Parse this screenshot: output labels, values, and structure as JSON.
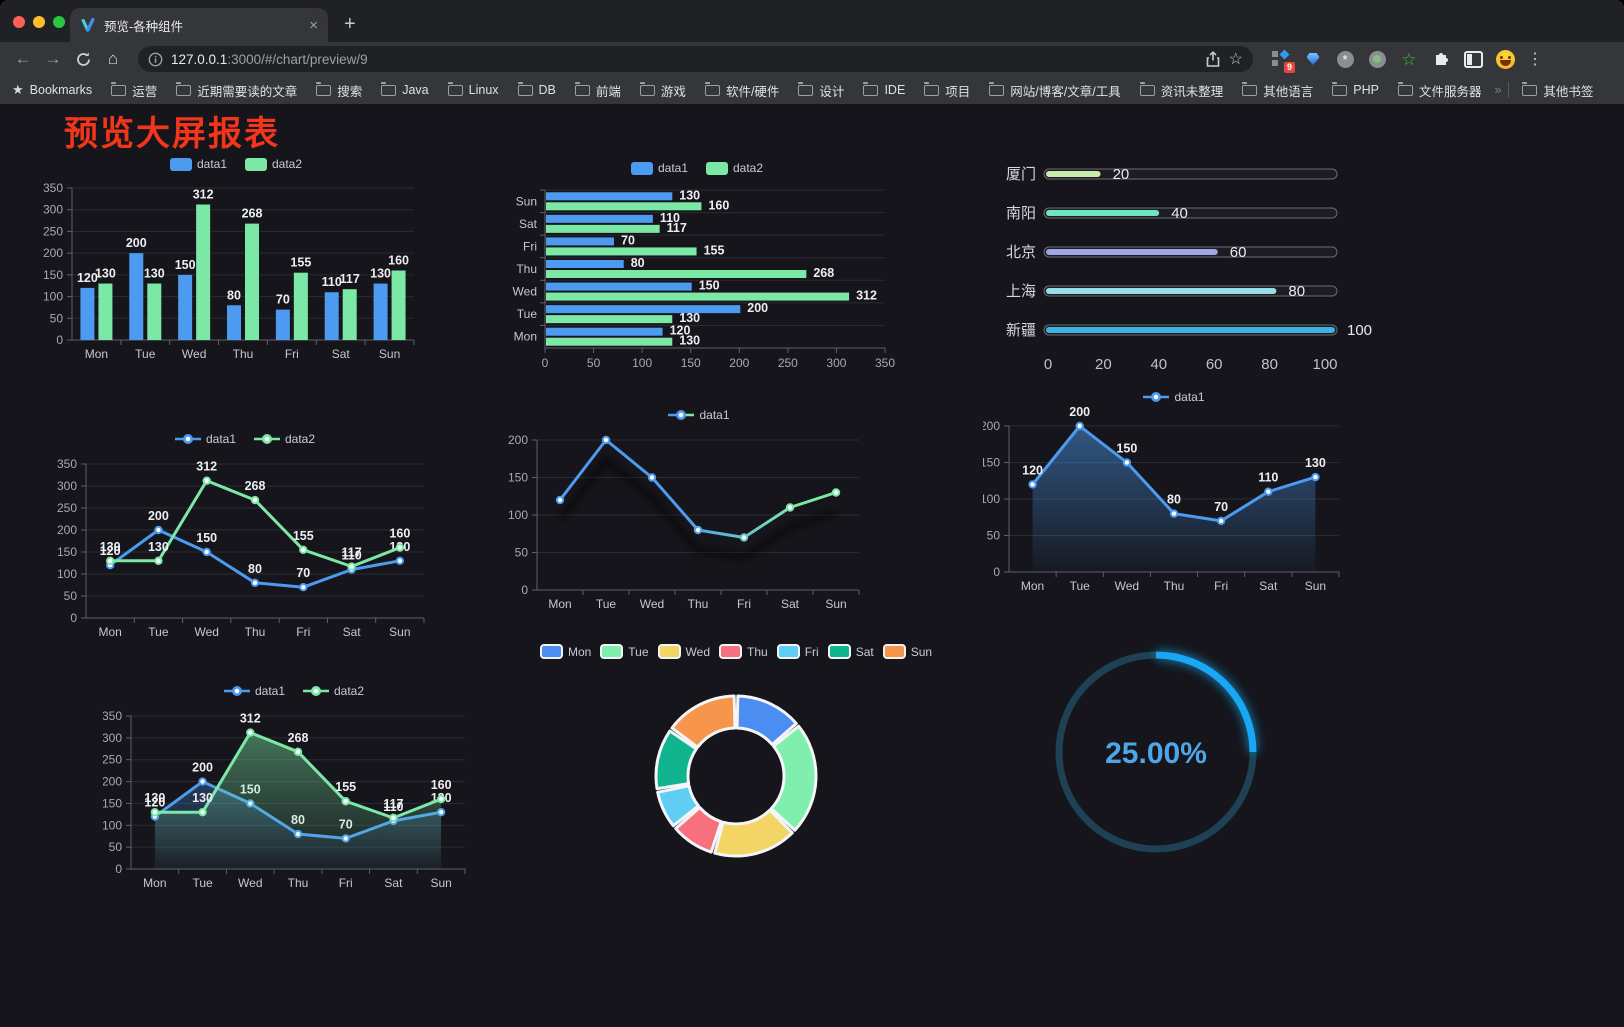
{
  "browser": {
    "traffic_lights": [
      {
        "name": "close",
        "color": "#FF5F57"
      },
      {
        "name": "minimize",
        "color": "#FEBC2E"
      },
      {
        "name": "zoom",
        "color": "#29C73F"
      }
    ],
    "tab": {
      "title": "预览-各种组件",
      "close_glyph": "×",
      "new_tab_glyph": "+"
    },
    "nav": {
      "back_glyph": "←",
      "forward_glyph": "→",
      "home_glyph": "⌂",
      "url_host": "127.0.0.1",
      "url_rest": ":3000/#/chart/preview/9",
      "star_glyph": "☆",
      "menu_glyph": "⋮"
    },
    "extensions": {
      "badge": "9"
    },
    "bookmarks_bar": {
      "star_glyph": "★",
      "label": "Bookmarks",
      "folders": [
        "运营",
        "近期需要读的文章",
        "搜索",
        "Java",
        "Linux",
        "DB",
        "前端",
        "游戏",
        "软件/硬件",
        "设计",
        "IDE",
        "项目",
        "网站/博客/文章/工具",
        "资讯未整理",
        "其他语言",
        "PHP",
        "文件服务器"
      ],
      "overflow_glyph": "»",
      "other_label": "其他书签"
    }
  },
  "page": {
    "title": "预览大屏报表",
    "title_color": "#F2361B",
    "background": "#15151B"
  },
  "chart_data": [
    {
      "id": "bar1",
      "type": "bar",
      "orientation": "vertical",
      "categories": [
        "Mon",
        "Tue",
        "Wed",
        "Thu",
        "Fri",
        "Sat",
        "Sun"
      ],
      "series": [
        {
          "name": "data1",
          "color": "#4C9BF0",
          "values": [
            120,
            200,
            150,
            80,
            70,
            110,
            130
          ]
        },
        {
          "name": "data2",
          "color": "#7CE8A6",
          "values": [
            130,
            130,
            312,
            268,
            155,
            117,
            160
          ]
        }
      ],
      "ylim": [
        0,
        350
      ],
      "ytick_step": 50,
      "labels": true,
      "legend": [
        "data1",
        "data2"
      ]
    },
    {
      "id": "bar2",
      "type": "bar",
      "orientation": "horizontal",
      "display_order": "Sun-at-top",
      "categories": [
        "Mon",
        "Tue",
        "Wed",
        "Thu",
        "Fri",
        "Sat",
        "Sun"
      ],
      "series": [
        {
          "name": "data1",
          "color": "#4C9BF0",
          "values": [
            120,
            200,
            150,
            80,
            70,
            110,
            130
          ]
        },
        {
          "name": "data2",
          "color": "#7CE8A6",
          "values": [
            130,
            130,
            312,
            268,
            155,
            117,
            160
          ]
        }
      ],
      "xlim": [
        0,
        350
      ],
      "xtick_step": 50,
      "labels": true,
      "legend": [
        "data1",
        "data2"
      ]
    },
    {
      "id": "progress",
      "type": "bar",
      "orientation": "horizontal-progress",
      "xlim": [
        0,
        100
      ],
      "xticks": [
        0,
        20,
        40,
        60,
        80,
        100
      ],
      "items": [
        {
          "name": "厦门",
          "value": 20,
          "color": "#C9EBAD"
        },
        {
          "name": "南阳",
          "value": 40,
          "color": "#6BE6C1"
        },
        {
          "name": "北京",
          "value": 60,
          "color": "#9FA6E3"
        },
        {
          "name": "上海",
          "value": 80,
          "color": "#96DEE8"
        },
        {
          "name": "新疆",
          "value": 100,
          "color": "#3FB1E3"
        }
      ]
    },
    {
      "id": "line1",
      "type": "line",
      "categories": [
        "Mon",
        "Tue",
        "Wed",
        "Thu",
        "Fri",
        "Sat",
        "Sun"
      ],
      "series": [
        {
          "name": "data1",
          "color": "#4C9BF0",
          "values": [
            120,
            200,
            150,
            80,
            70,
            110,
            130
          ]
        },
        {
          "name": "data2",
          "color": "#7CE8A6",
          "values": [
            130,
            130,
            312,
            268,
            155,
            117,
            160
          ]
        }
      ],
      "ylim": [
        0,
        350
      ],
      "ytick_step": 50,
      "labels": true,
      "legend": [
        "data1",
        "data2"
      ]
    },
    {
      "id": "line2",
      "type": "line",
      "categories": [
        "Mon",
        "Tue",
        "Wed",
        "Thu",
        "Fri",
        "Sat",
        "Sun"
      ],
      "series": [
        {
          "name": "data1",
          "color_start": "#4C9BF0",
          "color_end": "#7CE8A6",
          "values": [
            120,
            200,
            150,
            80,
            70,
            110,
            130
          ]
        }
      ],
      "ylim": [
        0,
        200
      ],
      "ytick_step": 50,
      "labels": false,
      "shadow": true,
      "legend": [
        "data1"
      ]
    },
    {
      "id": "line3",
      "type": "line",
      "categories": [
        "Mon",
        "Tue",
        "Wed",
        "Thu",
        "Fri",
        "Sat",
        "Sun"
      ],
      "series": [
        {
          "name": "data1",
          "color": "#4C9BF0",
          "area": true,
          "values": [
            120,
            200,
            150,
            80,
            70,
            110,
            130
          ]
        }
      ],
      "ylim": [
        0,
        200
      ],
      "ytick_step": 50,
      "labels": true,
      "legend": [
        "data1"
      ]
    },
    {
      "id": "line4",
      "type": "line",
      "categories": [
        "Mon",
        "Tue",
        "Wed",
        "Thu",
        "Fri",
        "Sat",
        "Sun"
      ],
      "series": [
        {
          "name": "data1",
          "color": "#4C9BF0",
          "area": true,
          "values": [
            120,
            200,
            150,
            80,
            70,
            110,
            130
          ]
        },
        {
          "name": "data2",
          "color": "#7CE8A6",
          "area": true,
          "values": [
            130,
            130,
            312,
            268,
            155,
            117,
            160
          ]
        }
      ],
      "ylim": [
        0,
        350
      ],
      "ytick_step": 50,
      "labels": true,
      "legend": [
        "data1",
        "data2"
      ]
    },
    {
      "id": "pie",
      "type": "pie",
      "shape": "donut",
      "categories": [
        "Mon",
        "Tue",
        "Wed",
        "Thu",
        "Fri",
        "Sat",
        "Sun"
      ],
      "values": [
        120,
        200,
        150,
        80,
        70,
        110,
        130
      ],
      "colors": [
        "#4C8DF2",
        "#80EFAE",
        "#F3D566",
        "#F8707E",
        "#60CDF4",
        "#10B48E",
        "#F8954C"
      ],
      "border_color": "#F4F5F7",
      "legend": [
        "Mon",
        "Tue",
        "Wed",
        "Thu",
        "Fri",
        "Sat",
        "Sun"
      ]
    },
    {
      "id": "gauge",
      "type": "gauge",
      "value": 25,
      "label": "25.00%",
      "track_color": "#1E4155",
      "progress_color": "#19A6F2",
      "text_color": "#4FA6E6"
    }
  ]
}
